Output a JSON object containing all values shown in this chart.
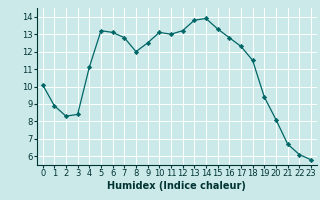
{
  "x": [
    0,
    1,
    2,
    3,
    4,
    5,
    6,
    7,
    8,
    9,
    10,
    11,
    12,
    13,
    14,
    15,
    16,
    17,
    18,
    19,
    20,
    21,
    22,
    23
  ],
  "y": [
    10.1,
    8.9,
    8.3,
    8.4,
    11.1,
    13.2,
    13.1,
    12.8,
    12.0,
    12.5,
    13.1,
    13.0,
    13.2,
    13.8,
    13.9,
    13.3,
    12.8,
    12.3,
    11.5,
    9.4,
    8.1,
    6.7,
    6.1,
    5.8
  ],
  "line_color": "#006666",
  "marker": "D",
  "marker_size": 2.2,
  "bg_color": "#cce9e9",
  "grid_color": "#ffffff",
  "xlabel": "Humidex (Indice chaleur)",
  "ylim": [
    5.5,
    14.5
  ],
  "xlim": [
    -0.5,
    23.5
  ],
  "yticks": [
    6,
    7,
    8,
    9,
    10,
    11,
    12,
    13,
    14
  ],
  "xticks": [
    0,
    1,
    2,
    3,
    4,
    5,
    6,
    7,
    8,
    9,
    10,
    11,
    12,
    13,
    14,
    15,
    16,
    17,
    18,
    19,
    20,
    21,
    22,
    23
  ],
  "tick_color": "#003333",
  "font_size": 6.0,
  "xlabel_fontsize": 7.0,
  "linewidth": 0.9
}
